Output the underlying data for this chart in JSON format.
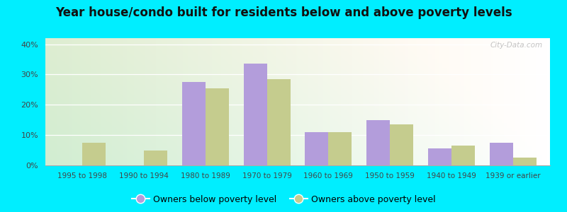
{
  "title": "Year house/condo built for residents below and above poverty levels",
  "categories": [
    "1995 to 1998",
    "1990 to 1994",
    "1980 to 1989",
    "1970 to 1979",
    "1960 to 1969",
    "1950 to 1959",
    "1940 to 1949",
    "1939 or earlier"
  ],
  "below_poverty": [
    0,
    0,
    27.5,
    33.5,
    11.0,
    15.0,
    5.5,
    7.5
  ],
  "above_poverty": [
    7.5,
    5.0,
    25.5,
    28.5,
    11.0,
    13.5,
    6.5,
    2.5
  ],
  "below_color": "#b39ddb",
  "above_color": "#c5cc8e",
  "ylim": [
    0,
    42
  ],
  "yticks": [
    0,
    10,
    20,
    30,
    40
  ],
  "ytick_labels": [
    "0%",
    "10%",
    "20%",
    "30%",
    "40%"
  ],
  "below_label": "Owners below poverty level",
  "above_label": "Owners above poverty level",
  "title_fontsize": 12,
  "watermark": "City-Data.com",
  "outer_bg": "#00eeff",
  "plot_bg_left": "#d4edda",
  "plot_bg_right": "#f0f8e8"
}
